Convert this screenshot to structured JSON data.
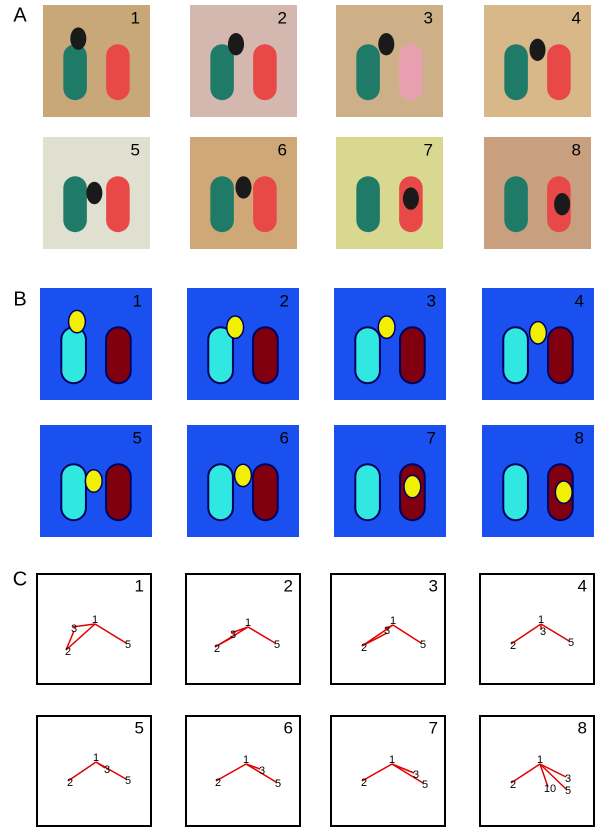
{
  "panels": [
    {
      "label": "A",
      "tiles": [
        "1",
        "2",
        "3",
        "4",
        "5",
        "6",
        "7",
        "8"
      ]
    },
    {
      "label": "B",
      "tiles": [
        "1",
        "2",
        "3",
        "4",
        "5",
        "6",
        "7",
        "8"
      ]
    },
    {
      "label": "C",
      "tiles": [
        {
          "number": "1",
          "nodes": [
            "1",
            "3",
            "2",
            "5"
          ]
        },
        {
          "number": "2",
          "nodes": [
            "1",
            "3",
            "2",
            "5"
          ]
        },
        {
          "number": "3",
          "nodes": [
            "1",
            "3",
            "2",
            "5"
          ]
        },
        {
          "number": "4",
          "nodes": [
            "1",
            "3",
            "2",
            "5"
          ]
        },
        {
          "number": "5",
          "nodes": [
            "1",
            "3",
            "2",
            "5"
          ]
        },
        {
          "number": "6",
          "nodes": [
            "1",
            "3",
            "2",
            "5"
          ]
        },
        {
          "number": "7",
          "nodes": [
            "1",
            "3",
            "2",
            "5"
          ]
        },
        {
          "number": "8",
          "nodes": [
            "1",
            "3",
            "10",
            "5",
            "2"
          ]
        }
      ]
    }
  ]
}
